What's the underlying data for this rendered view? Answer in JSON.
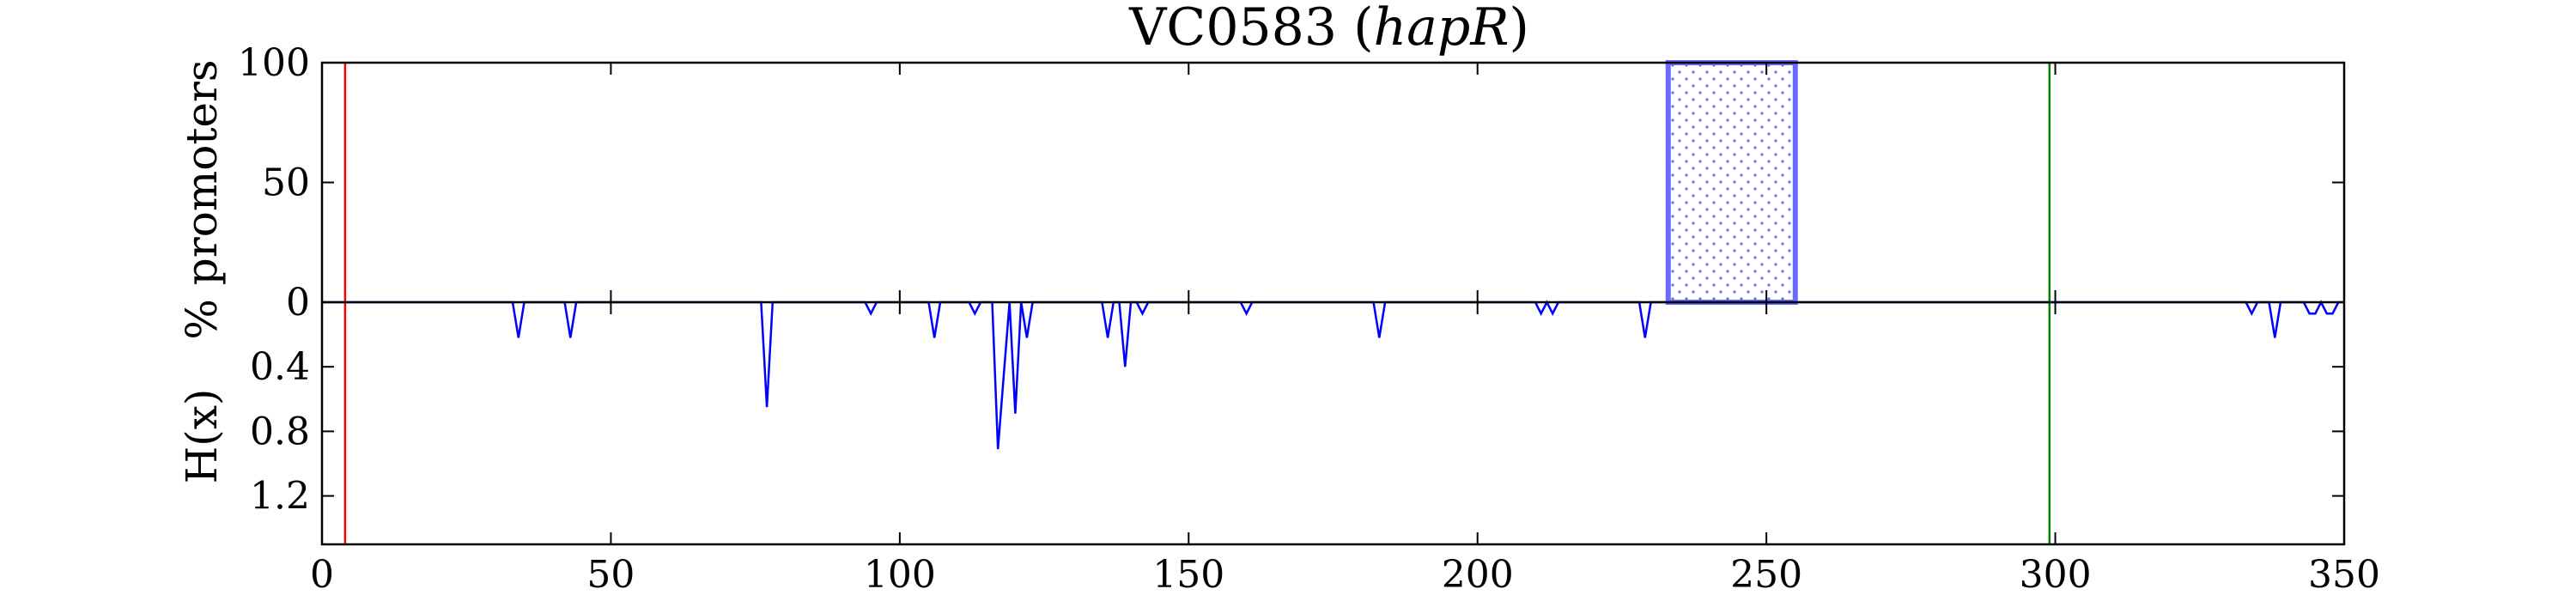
{
  "chart_data": {
    "type": "line",
    "title_main": "VC0583 (",
    "title_italic": "hapR",
    "title_close": ")",
    "top_panel": {
      "ylabel": "% promoters",
      "ylim": [
        0,
        100
      ],
      "yticks": [
        0,
        50,
        100
      ],
      "ytick_labels": [
        "0",
        "50",
        "100"
      ],
      "promoter_box": {
        "x_start": 233,
        "x_end": 255,
        "value": 100,
        "color": "#6a6afc",
        "fill": "#ffffff",
        "hatch": "dots"
      }
    },
    "bottom_panel": {
      "ylabel": "H(x)",
      "ylim": [
        0,
        1.5
      ],
      "inverted": true,
      "yticks": [
        0.4,
        0.8,
        1.2
      ],
      "ytick_labels": [
        "0.4",
        "0.8",
        "1.2"
      ],
      "series": [
        {
          "color": "#0000ff",
          "x": [
            0,
            33,
            34,
            35,
            42,
            43,
            44,
            76,
            77,
            78,
            94,
            95,
            96,
            105,
            106,
            107,
            112,
            113,
            114,
            116,
            117,
            118,
            119,
            120,
            121,
            122,
            123,
            135,
            136,
            137,
            138,
            139,
            140,
            141,
            142,
            143,
            159,
            160,
            161,
            182,
            183,
            184,
            210,
            211,
            212,
            213,
            214,
            228,
            229,
            230,
            333,
            334,
            335,
            337,
            338,
            339,
            343,
            344,
            345,
            346,
            347,
            348,
            349,
            350
          ],
          "y": [
            0,
            0,
            0.22,
            0,
            0,
            0.22,
            0,
            0,
            0.65,
            0,
            0,
            0.07,
            0,
            0,
            0.22,
            0,
            0,
            0.07,
            0,
            0,
            0.91,
            0.45,
            0,
            0.69,
            0,
            0.22,
            0,
            0,
            0.22,
            0,
            0,
            0.4,
            0,
            0,
            0.07,
            0,
            0,
            0.07,
            0,
            0,
            0.22,
            0,
            0,
            0.07,
            0,
            0.07,
            0,
            0,
            0.22,
            0,
            0,
            0.07,
            0,
            0,
            0.22,
            0,
            0,
            0.07,
            0.07,
            0,
            0.07,
            0.07,
            0,
            0
          ]
        }
      ]
    },
    "x_axis": {
      "xlim": [
        0,
        350
      ],
      "xticks": [
        0,
        50,
        100,
        150,
        200,
        250,
        300,
        350
      ],
      "xtick_labels": [
        "0",
        "50",
        "100",
        "150",
        "200",
        "250",
        "300",
        "350"
      ]
    },
    "vlines": [
      {
        "x": 4,
        "color": "#ff0000"
      },
      {
        "x": 299,
        "color": "#008000"
      }
    ],
    "grid": false
  }
}
